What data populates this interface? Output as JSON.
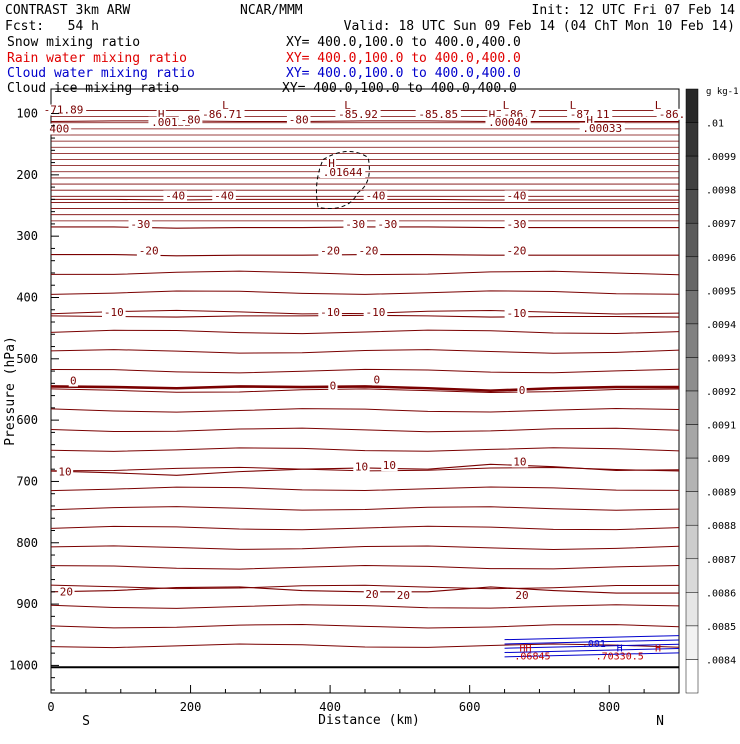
{
  "header": {
    "left_line1": "CONTRAST  3km ARW",
    "center_line1": "NCAR/MMM",
    "right_line1": "Init: 12 UTC Fri 07 Feb 14",
    "left_line2": "Fcst:   54 h",
    "right_line2": "Valid: 18 UTC Sun 09 Feb 14 (04 ChT Mon 10 Feb 14)"
  },
  "fields": [
    {
      "name": "Snow mixing ratio",
      "xy": "XY= 400.0,100.0 to 400.0,400.0",
      "color": "#000000"
    },
    {
      "name": "Rain water mixing ratio",
      "xy": "XY= 400.0,100.0 to 400.0,400.0",
      "color": "#e00000"
    },
    {
      "name": "Cloud water mixing ratio",
      "xy": "XY= 400.0,100.0 to 400.0,400.0",
      "color": "#0000cc"
    },
    {
      "name": "Cloud ice mixing ratio",
      "xy": "XY= 400.0,100.0 to 400.0,400.0",
      "color": "#000000"
    }
  ],
  "axes": {
    "ylabel": "Pressure (hPa)",
    "xlabel": "Distance (km)",
    "south": "S",
    "north": "N"
  },
  "chart_data": {
    "type": "contour",
    "ylabel": "Pressure (hPa)",
    "xlabel": "Distance (km)",
    "xlim": [
      0,
      900
    ],
    "ylim": [
      1045,
      60
    ],
    "x_ticks": [
      "0",
      "200",
      "400",
      "600",
      "800"
    ],
    "x_tick_values": [
      0,
      200,
      400,
      600,
      800
    ],
    "y_ticks": [
      "100",
      "200",
      "300",
      "400",
      "500",
      "600",
      "700",
      "800",
      "900",
      "1000"
    ],
    "y_tick_values": [
      100,
      200,
      300,
      400,
      500,
      600,
      700,
      800,
      900,
      1000
    ],
    "temperature_contours": [
      {
        "level": 20,
        "pressure": [
          880,
          878,
          873,
          872,
          878,
          880,
          880,
          872,
          878,
          882,
          882
        ]
      },
      {
        "level": 10,
        "pressure": [
          683,
          686,
          690,
          684,
          680,
          678,
          680,
          672,
          676,
          682,
          681
        ]
      },
      {
        "level": 0,
        "pressure": [
          545,
          546,
          548,
          545,
          546,
          545,
          548,
          552,
          548,
          546,
          546
        ]
      },
      {
        "level": -10,
        "pressure": [
          430,
          431,
          432,
          430,
          430,
          429,
          430,
          432,
          431,
          431,
          432
        ]
      },
      {
        "level": -20,
        "pressure": [
          330,
          330,
          332,
          331,
          331,
          330,
          330,
          331,
          331,
          331,
          331
        ]
      },
      {
        "level": -30,
        "pressure": [
          285,
          285,
          287,
          286,
          286,
          285,
          285,
          286,
          286,
          286,
          286
        ]
      },
      {
        "level": -40,
        "pressure": [
          240,
          240,
          241,
          240,
          240,
          240,
          240,
          241,
          241,
          241,
          241
        ]
      },
      {
        "level": -80,
        "pressure": [
          113,
          112,
          112,
          113,
          113,
          112,
          112,
          113,
          113,
          113,
          113
        ]
      }
    ],
    "contour_x": [
      0,
      90,
      180,
      270,
      360,
      450,
      540,
      630,
      720,
      810,
      900
    ],
    "colorbar": {
      "unit": "g kg-1",
      "labels": [
        ".01",
        ".0099",
        ".0098",
        ".0097",
        ".0096",
        ".0095",
        ".0094",
        ".0093",
        ".0092",
        ".0091",
        ".009",
        ".0089",
        ".0088",
        ".0087",
        ".0086",
        ".0085",
        ".0084"
      ]
    },
    "labels": [
      {
        "text": "-71.89",
        "x": 18,
        "p": 100
      },
      {
        "text": "L",
        "x": 250,
        "p": 93
      },
      {
        "text": "-86.71",
        "x": 245,
        "p": 107
      },
      {
        "text": "L",
        "x": 425,
        "p": 93
      },
      {
        "text": "-85.92",
        "x": 440,
        "p": 107
      },
      {
        "text": "-85.85",
        "x": 555,
        "p": 107
      },
      {
        "text": "L",
        "x": 652,
        "p": 93
      },
      {
        "text": "H",
        "x": 632,
        "p": 108
      },
      {
        "text": "-86.7",
        "x": 672,
        "p": 107
      },
      {
        "text": "L",
        "x": 748,
        "p": 93
      },
      {
        "text": "-87.11",
        "x": 772,
        "p": 107
      },
      {
        "text": "L",
        "x": 870,
        "p": 93
      },
      {
        "text": "-86.",
        "x": 890,
        "p": 107
      },
      {
        "text": "H",
        "x": 158,
        "p": 107
      },
      {
        "text": ".00122",
        "x": 172,
        "p": 120
      },
      {
        "text": "-80",
        "x": 200,
        "p": 116
      },
      {
        "text": "-80",
        "x": 355,
        "p": 116
      },
      {
        "text": ".00040",
        "x": 655,
        "p": 120
      },
      {
        "text": "H",
        "x": 772,
        "p": 117
      },
      {
        "text": ".00033",
        "x": 790,
        "p": 130
      },
      {
        "text": "400",
        "x": 12,
        "p": 131
      },
      {
        "text": "H",
        "x": 402,
        "p": 187
      },
      {
        "text": ".01644",
        "x": 418,
        "p": 202
      },
      {
        "text": "-40",
        "x": 178,
        "p": 240
      },
      {
        "text": "-40",
        "x": 248,
        "p": 240
      },
      {
        "text": "-40",
        "x": 465,
        "p": 240
      },
      {
        "text": "-40",
        "x": 667,
        "p": 240
      },
      {
        "text": "-30",
        "x": 128,
        "p": 287
      },
      {
        "text": "-30",
        "x": 436,
        "p": 287
      },
      {
        "text": "-30",
        "x": 482,
        "p": 287
      },
      {
        "text": "-30",
        "x": 667,
        "p": 287
      },
      {
        "text": "-20",
        "x": 140,
        "p": 330
      },
      {
        "text": "-20",
        "x": 400,
        "p": 330
      },
      {
        "text": "-20",
        "x": 455,
        "p": 330
      },
      {
        "text": "-20",
        "x": 667,
        "p": 330
      },
      {
        "text": "-10",
        "x": 90,
        "p": 430
      },
      {
        "text": "-10",
        "x": 400,
        "p": 430
      },
      {
        "text": "-10",
        "x": 465,
        "p": 430
      },
      {
        "text": "-10",
        "x": 667,
        "p": 432
      },
      {
        "text": "0",
        "x": 32,
        "p": 542
      },
      {
        "text": "0",
        "x": 404,
        "p": 550
      },
      {
        "text": "0",
        "x": 467,
        "p": 540
      },
      {
        "text": "0",
        "x": 675,
        "p": 557
      },
      {
        "text": "10",
        "x": 20,
        "p": 690
      },
      {
        "text": "10",
        "x": 445,
        "p": 682
      },
      {
        "text": "10",
        "x": 485,
        "p": 680
      },
      {
        "text": "10",
        "x": 672,
        "p": 674
      },
      {
        "text": "20",
        "x": 22,
        "p": 886
      },
      {
        "text": "20",
        "x": 460,
        "p": 890
      },
      {
        "text": "20",
        "x": 505,
        "p": 892
      },
      {
        "text": "20",
        "x": 675,
        "p": 892
      }
    ],
    "surface_labels": [
      {
        "text": "HH",
        "x": 680,
        "p": 977,
        "color": "#c00000"
      },
      {
        "text": ".06845",
        "x": 690,
        "p": 990,
        "color": "#c00000"
      },
      {
        "text": ".001",
        "x": 778,
        "p": 970,
        "color": "#0000cc"
      },
      {
        "text": "H",
        "x": 815,
        "p": 977,
        "color": "#0000cc"
      },
      {
        "text": ".70330.5",
        "x": 815,
        "p": 990,
        "color": "#c00000"
      },
      {
        "text": "H",
        "x": 870,
        "p": 977,
        "color": "#c00000"
      }
    ]
  }
}
